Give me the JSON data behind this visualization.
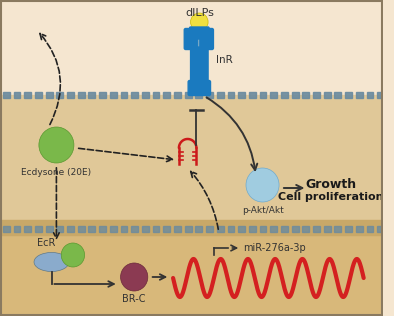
{
  "bg_outer": "#f5e6d0",
  "bg_cell": "#e8d0a8",
  "bg_nucleus": "#dfc090",
  "cell_membrane_color": "#6a8a9f",
  "labels": {
    "dILPs": "dILPs",
    "InR": "InR",
    "Ecdysone": "Ecdysone (20E)",
    "pAkt": "p-Akt/Akt",
    "Growth": "Growth",
    "CellProlif": "Cell proliferation",
    "EcR": "EcR",
    "BRC": "BR-C",
    "miR": "miR-276a-3p"
  },
  "colors": {
    "dILPs_ball": "#f0e040",
    "InR_body": "#1a7abf",
    "ecdysone_green": "#7ab84a",
    "pAkt_blue": "#a0cce0",
    "EcR_green": "#7ab84a",
    "EcR_body": "#8aabcc",
    "BRC_maroon": "#8b3a52",
    "miRNA_red": "#d42020",
    "miRNA_small_red": "#cc1a1a",
    "arrow_dark": "#333333",
    "dashed_arrow": "#222222",
    "membrane_seg": "#6a8a9f"
  }
}
